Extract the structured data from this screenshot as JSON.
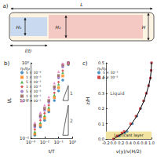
{
  "panel_a": {
    "label": "a)",
    "H1": "H₁",
    "H2": "H₂",
    "H": "H",
    "L": "L",
    "l": "l(t)"
  },
  "chart_data": [
    {
      "label": "b)",
      "type": "scatter",
      "x_label": "t/T",
      "y_label": "l/L",
      "log": true,
      "grid": false,
      "legend": "upper left",
      "legend_title": "η₁/η₂",
      "xlim": [
        0.001,
        1
      ],
      "xticks": [
        {
          "value": 0.001,
          "label": "10⁻³"
        },
        {
          "value": 0.01,
          "label": "10⁻²"
        },
        {
          "value": 0.1,
          "label": "10⁻¹"
        },
        {
          "value": 1,
          "label": "10⁰"
        }
      ],
      "ylim": [
        0.01,
        1
      ],
      "yticks": [
        {
          "value": 0.01,
          "label": "10⁻²"
        },
        {
          "value": 0.1,
          "label": "10⁻¹"
        },
        {
          "value": 1,
          "label": "10⁰"
        }
      ],
      "x": [
        0.002,
        0.005,
        0.01,
        0.02,
        0.05,
        0.1,
        0.2,
        0.5
      ],
      "series": [
        {
          "name": "5 × 10⁻⁴",
          "color": "#1f77b4",
          "marker": "circle",
          "values": [
            0.012,
            0.02,
            0.03,
            0.05,
            0.1,
            0.18,
            0.35,
            0.9
          ]
        },
        {
          "name": "1 × 10⁻³",
          "color": "#ff7f0e",
          "marker": "square",
          "values": [
            0.013,
            0.022,
            0.034,
            0.056,
            0.12,
            0.22,
            0.45,
            0.95
          ]
        },
        {
          "name": "5 × 10⁻³",
          "color": "#2ca02c",
          "marker": "triangle",
          "values": [
            0.015,
            0.026,
            0.04,
            0.066,
            0.14,
            0.27,
            0.55,
            0.98
          ]
        },
        {
          "name": "1 × 10⁻²",
          "color": "#d62728",
          "marker": "diamond",
          "values": [
            0.017,
            0.03,
            0.046,
            0.075,
            0.16,
            0.31,
            0.62,
            0.99
          ]
        },
        {
          "name": "5 × 10⁻²",
          "color": "#9467bd",
          "marker": "circle",
          "values": [
            0.02,
            0.036,
            0.055,
            0.09,
            0.2,
            0.4,
            0.78,
            1.0
          ]
        },
        {
          "name": "1 × 10⁻¹",
          "color": "#8c564b",
          "marker": "square",
          "values": [
            0.022,
            0.04,
            0.062,
            0.1,
            0.23,
            0.46,
            0.88,
            1.0
          ]
        },
        {
          "name": "5 × 10⁻¹",
          "color": "#e377c2",
          "marker": "triangle",
          "values": [
            0.026,
            0.048,
            0.075,
            0.125,
            0.29,
            0.58,
            0.97,
            1.0
          ]
        }
      ],
      "slope_triangles": [
        {
          "label": "1",
          "points": [
            [
              0.2,
              0.1
            ],
            [
              0.5,
              0.1
            ],
            [
              0.5,
              0.25
            ]
          ]
        },
        {
          "label": "2",
          "points": [
            [
              0.2,
              0.012
            ],
            [
              0.5,
              0.012
            ],
            [
              0.5,
              0.075
            ]
          ]
        }
      ]
    },
    {
      "label": "c)",
      "type": "scatter",
      "x_label": "v(y)/v(H/2)",
      "y_label": "z/H",
      "grid": false,
      "legend": "upper left",
      "legend_title": "η₁/η₂",
      "xlim": [
        -0.2,
        1.0
      ],
      "xticks": [
        {
          "value": -0.2,
          "label": "-0.2"
        },
        {
          "value": 0,
          "label": "0.0"
        },
        {
          "value": 0.2,
          "label": "0.2"
        },
        {
          "value": 0.4,
          "label": "0.4"
        },
        {
          "value": 0.6,
          "label": "0.6"
        },
        {
          "value": 0.8,
          "label": "0.8"
        },
        {
          "value": 1.0,
          "label": "1.0"
        }
      ],
      "ylim": [
        0,
        0.5
      ],
      "yticks": [
        {
          "value": 0,
          "label": "0.0"
        },
        {
          "value": 0.1,
          "label": "0.1"
        },
        {
          "value": 0.2,
          "label": "0.2"
        },
        {
          "value": 0.3,
          "label": "0.3"
        },
        {
          "value": 0.4,
          "label": "0.4"
        },
        {
          "value": 0.5,
          "label": "0.5"
        }
      ],
      "series": [
        {
          "name": "5 × 10⁻³",
          "color": "#1f77b4",
          "marker": "circle",
          "x": [
            0,
            0.15,
            0.3,
            0.36,
            0.5,
            0.62,
            0.72,
            0.8,
            0.87,
            0.93,
            0.97,
            0.99,
            1.0
          ],
          "values": [
            0,
            0.02,
            0.04,
            0.05,
            0.1,
            0.15,
            0.2,
            0.25,
            0.3,
            0.35,
            0.4,
            0.45,
            0.5
          ]
        },
        {
          "name": "5 × 10⁻²",
          "color": "#d62728",
          "marker": "square",
          "x": [
            0,
            0.1,
            0.22,
            0.28,
            0.45,
            0.59,
            0.7,
            0.79,
            0.86,
            0.92,
            0.97,
            0.99,
            1.0
          ],
          "values": [
            0,
            0.02,
            0.04,
            0.05,
            0.1,
            0.15,
            0.2,
            0.25,
            0.3,
            0.35,
            0.4,
            0.45,
            0.5
          ]
        },
        {
          "type": "line",
          "color": "#000000",
          "marker": "none",
          "line_style": "solid",
          "x": [
            0,
            0.13,
            0.27,
            0.33,
            0.48,
            0.61,
            0.71,
            0.8,
            0.865,
            0.925,
            0.97,
            0.99,
            1.0
          ],
          "values": [
            0,
            0.02,
            0.04,
            0.05,
            0.1,
            0.15,
            0.2,
            0.25,
            0.3,
            0.35,
            0.4,
            0.45,
            0.5
          ]
        }
      ],
      "annotations": [
        {
          "text": "Liquid",
          "x": 0.1,
          "y": 0.3
        }
      ],
      "bands": [
        {
          "text": "Lubricant layer",
          "ylim": [
            0,
            0.05
          ],
          "color": "#f3e3a0"
        }
      ]
    }
  ]
}
